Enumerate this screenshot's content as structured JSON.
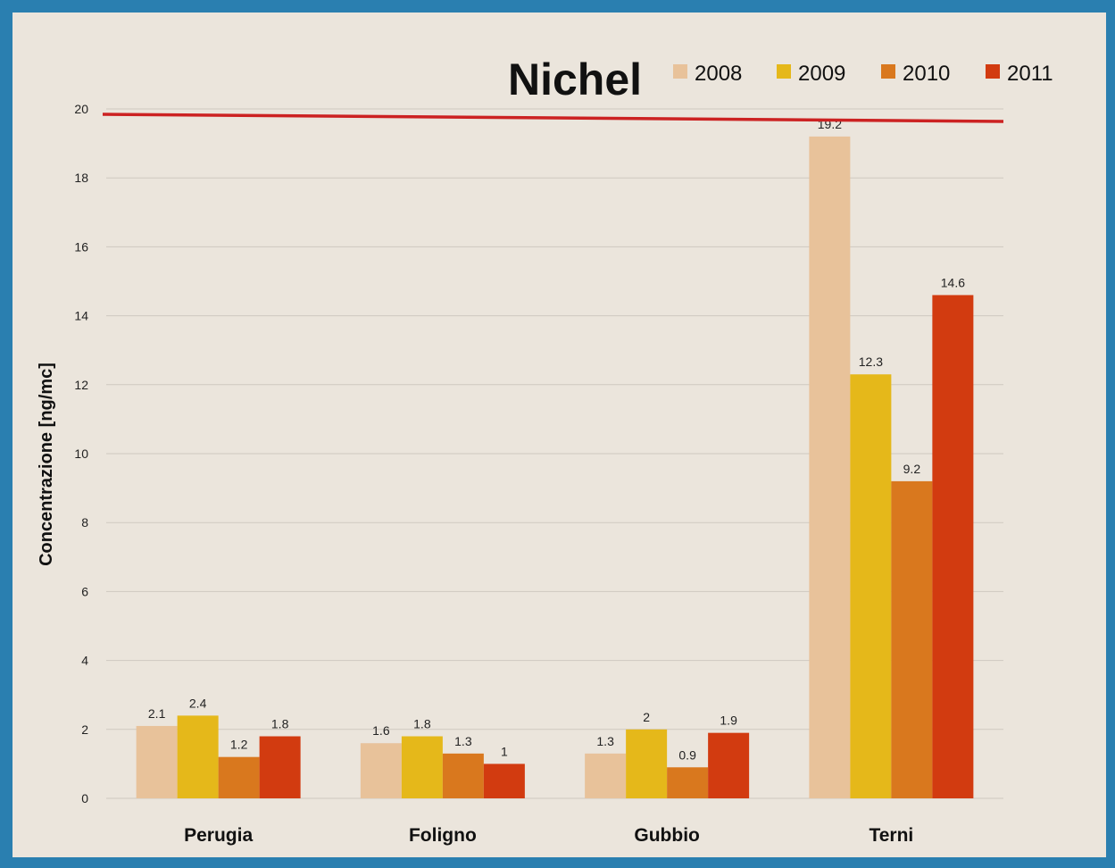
{
  "chart_data": {
    "type": "bar",
    "title": "Nichel",
    "ylabel": "Concentrazione [ng/mc]",
    "xlabel": "",
    "categories": [
      "Perugia",
      "Foligno",
      "Gubbio",
      "Terni"
    ],
    "series": [
      {
        "name": "2008",
        "color": "#e8c29a",
        "values": [
          2.1,
          1.6,
          1.3,
          19.2
        ]
      },
      {
        "name": "2009",
        "color": "#e5b81a",
        "values": [
          2.4,
          1.8,
          2,
          12.3
        ]
      },
      {
        "name": "2010",
        "color": "#d9781e",
        "values": [
          1.2,
          1.3,
          0.9,
          9.2
        ]
      },
      {
        "name": "2011",
        "color": "#d23b10",
        "values": [
          1.8,
          1,
          1.9,
          14.6
        ]
      }
    ],
    "value_labels": [
      [
        "2.1",
        "1.6",
        "1.3",
        "19.2"
      ],
      [
        "2.4",
        "1.8",
        "2",
        "12.3"
      ],
      [
        "1.2",
        "1.3",
        "0.9",
        "9.2"
      ],
      [
        "1.8",
        "1",
        "1.9",
        "14.6"
      ]
    ],
    "ylim": [
      0,
      20
    ],
    "yticks": [
      0,
      2,
      4,
      6,
      8,
      10,
      12,
      14,
      16,
      18,
      20
    ],
    "threshold": {
      "value": 20,
      "color": "#cc2222"
    },
    "grid": true,
    "legend_position": "top-right"
  }
}
